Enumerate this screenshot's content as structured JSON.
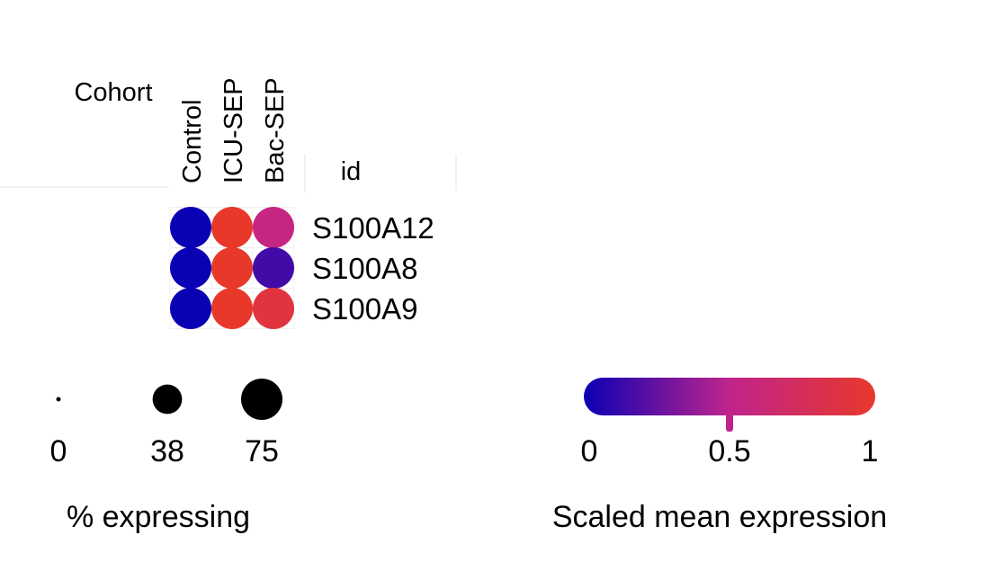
{
  "chart_data": {
    "type": "dotplot",
    "title": "",
    "column_group_label": "Cohort",
    "row_header": "id",
    "columns": [
      "Control",
      "ICU-SEP",
      "Bac-SEP"
    ],
    "rows": [
      "S100A12",
      "S100A8",
      "S100A9"
    ],
    "scaled_mean_expression": [
      [
        0.0,
        1.0,
        0.55
      ],
      [
        0.0,
        1.0,
        0.15
      ],
      [
        0.0,
        1.0,
        0.9
      ]
    ],
    "pct_expressing": [
      [
        100,
        100,
        100
      ],
      [
        100,
        100,
        100
      ],
      [
        100,
        100,
        100
      ]
    ],
    "size_legend": {
      "title": "% expressing",
      "ticks": [
        0,
        38,
        75
      ]
    },
    "color_legend": {
      "title": "Scaled mean expression",
      "ticks": [
        "0",
        "0.5",
        "1"
      ],
      "marker_value": 0.5,
      "colors": {
        "low": "#0a00b4",
        "mid": "#c0248c",
        "high": "#e8382a"
      }
    }
  }
}
